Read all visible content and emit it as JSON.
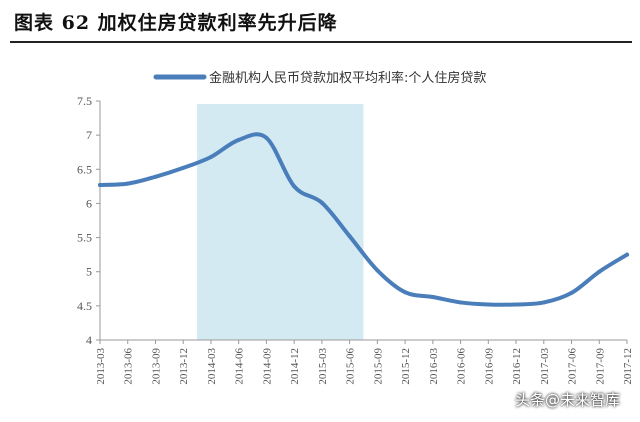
{
  "figure": {
    "title": "图表 62  加权住房贷款利率先升后降"
  },
  "watermark": "头条@未来智库",
  "colors": {
    "line": "#4a7ebb",
    "highlight": "#d4eaf3",
    "axis": "#999999",
    "text": "#555555"
  },
  "chart_data": {
    "type": "line",
    "title": "",
    "xlabel": "",
    "ylabel": "",
    "ylim": [
      4,
      7.5
    ],
    "yticks": [
      "4",
      "4.5",
      "5",
      "5.5",
      "6",
      "6.5",
      "7",
      "7.5"
    ],
    "categories": [
      "2013-03",
      "2013-06",
      "2013-09",
      "2013-12",
      "2014-03",
      "2014-06",
      "2014-09",
      "2014-12",
      "2015-03",
      "2015-06",
      "2015-09",
      "2015-12",
      "2016-03",
      "2016-06",
      "2016-09",
      "2016-12",
      "2017-03",
      "2017-06",
      "2017-09",
      "2017-12"
    ],
    "series": [
      {
        "name": "金融机构人民币贷款加权平均利率:个人住房贷款",
        "values": [
          6.27,
          6.29,
          6.39,
          6.52,
          6.68,
          6.93,
          6.96,
          6.25,
          6.01,
          5.52,
          5.02,
          4.7,
          4.63,
          4.55,
          4.52,
          4.52,
          4.55,
          4.69,
          5.0,
          5.25
        ]
      }
    ],
    "highlight_range": [
      "2014-03",
      "2015-06"
    ],
    "legend": "top",
    "grid": false
  }
}
